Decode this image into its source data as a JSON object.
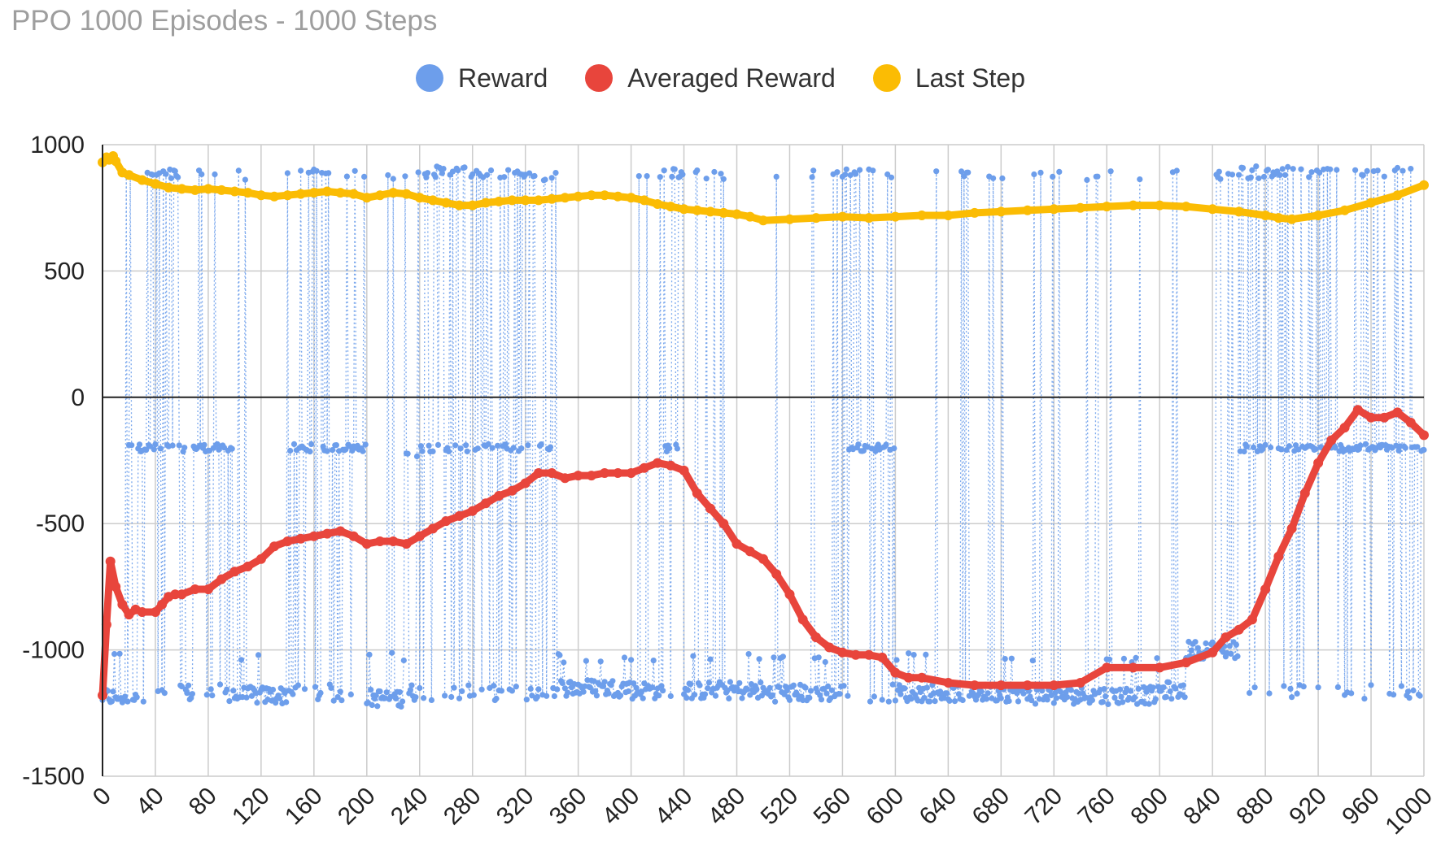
{
  "chart_data": {
    "type": "line",
    "title": "PPO 1000 Episodes - 1000 Steps",
    "xlabel": "",
    "ylabel": "",
    "xlim": [
      0,
      1000
    ],
    "ylim": [
      -1500,
      1000
    ],
    "y_ticks": [
      "1000",
      "500",
      "0",
      "-500",
      "-1000",
      "-1500"
    ],
    "y_tick_values": [
      1000,
      500,
      0,
      -500,
      -1000,
      -1500
    ],
    "x_ticks": [
      "0",
      "40",
      "80",
      "120",
      "160",
      "200",
      "240",
      "280",
      "320",
      "360",
      "400",
      "440",
      "480",
      "520",
      "560",
      "600",
      "640",
      "680",
      "720",
      "760",
      "800",
      "840",
      "880",
      "920",
      "960",
      "1000"
    ],
    "grid": true,
    "legend_position": "top-center",
    "series": [
      {
        "name": "Reward",
        "color": "#6d9eeb",
        "style": "dotted-line-with-markers",
        "regime_points": [
          [
            0,
            -1185
          ],
          [
            20,
            -200
          ],
          [
            35,
            880
          ],
          [
            60,
            -200
          ],
          [
            100,
            -1180
          ],
          [
            140,
            -200
          ],
          [
            200,
            -1190
          ],
          [
            230,
            -220
          ],
          [
            240,
            890
          ],
          [
            300,
            880
          ],
          [
            340,
            -1150
          ],
          [
            400,
            -1160
          ],
          [
            420,
            890
          ],
          [
            440,
            -1160
          ],
          [
            500,
            -1170
          ],
          [
            560,
            -200
          ],
          [
            600,
            -1170
          ],
          [
            700,
            -1180
          ],
          [
            800,
            -1160
          ],
          [
            820,
            -1000
          ],
          [
            860,
            890
          ],
          [
            900,
            -200
          ],
          [
            960,
            -200
          ],
          [
            1000,
            -200
          ]
        ]
      },
      {
        "name": "Averaged Reward",
        "color": "#e8453c",
        "style": "line-with-markers",
        "x": [
          0,
          3,
          6,
          10,
          15,
          20,
          25,
          30,
          40,
          45,
          50,
          55,
          60,
          70,
          80,
          90,
          100,
          110,
          120,
          130,
          140,
          150,
          160,
          170,
          180,
          190,
          200,
          210,
          220,
          230,
          240,
          250,
          260,
          270,
          280,
          290,
          300,
          310,
          320,
          330,
          340,
          350,
          360,
          370,
          380,
          390,
          400,
          410,
          420,
          430,
          440,
          450,
          460,
          470,
          480,
          490,
          500,
          510,
          520,
          530,
          540,
          550,
          560,
          570,
          580,
          590,
          600,
          610,
          620,
          640,
          660,
          680,
          700,
          720,
          740,
          760,
          780,
          800,
          820,
          840,
          850,
          860,
          870,
          880,
          890,
          900,
          910,
          920,
          930,
          940,
          950,
          960,
          970,
          980,
          990,
          1000
        ],
        "y": [
          -1180,
          -900,
          -650,
          -750,
          -820,
          -860,
          -840,
          -850,
          -850,
          -820,
          -790,
          -780,
          -780,
          -760,
          -760,
          -720,
          -690,
          -670,
          -640,
          -590,
          -570,
          -560,
          -550,
          -540,
          -530,
          -550,
          -580,
          -570,
          -570,
          -580,
          -550,
          -520,
          -490,
          -470,
          -450,
          -420,
          -390,
          -370,
          -340,
          -300,
          -300,
          -320,
          -310,
          -310,
          -300,
          -300,
          -300,
          -280,
          -260,
          -270,
          -290,
          -380,
          -440,
          -500,
          -580,
          -610,
          -640,
          -700,
          -780,
          -880,
          -950,
          -990,
          -1010,
          -1020,
          -1020,
          -1030,
          -1090,
          -1110,
          -1110,
          -1130,
          -1140,
          -1140,
          -1140,
          -1140,
          -1130,
          -1070,
          -1070,
          -1070,
          -1050,
          -1010,
          -950,
          -920,
          -880,
          -760,
          -630,
          -520,
          -380,
          -260,
          -170,
          -120,
          -50,
          -80,
          -80,
          -60,
          -100,
          -150
        ]
      },
      {
        "name": "Last Step",
        "color": "#fbbc04",
        "style": "line-with-markers",
        "x": [
          0,
          3,
          5,
          8,
          10,
          15,
          20,
          30,
          40,
          50,
          60,
          70,
          80,
          90,
          100,
          110,
          120,
          130,
          140,
          150,
          160,
          170,
          180,
          190,
          200,
          210,
          220,
          230,
          240,
          250,
          260,
          270,
          280,
          290,
          300,
          310,
          320,
          330,
          340,
          350,
          360,
          370,
          380,
          390,
          400,
          410,
          420,
          430,
          440,
          450,
          460,
          470,
          480,
          490,
          500,
          520,
          540,
          560,
          580,
          600,
          620,
          640,
          660,
          680,
          700,
          720,
          740,
          760,
          780,
          800,
          820,
          840,
          860,
          880,
          890,
          900,
          920,
          940,
          960,
          980,
          1000
        ],
        "y": [
          930,
          950,
          940,
          955,
          935,
          890,
          880,
          860,
          845,
          830,
          825,
          820,
          825,
          820,
          815,
          810,
          800,
          795,
          800,
          805,
          810,
          815,
          810,
          805,
          790,
          800,
          810,
          805,
          790,
          780,
          770,
          760,
          760,
          770,
          775,
          780,
          780,
          780,
          785,
          790,
          795,
          800,
          800,
          795,
          790,
          780,
          765,
          755,
          745,
          740,
          735,
          730,
          725,
          715,
          700,
          705,
          710,
          715,
          710,
          715,
          720,
          720,
          730,
          735,
          740,
          745,
          750,
          755,
          760,
          760,
          755,
          745,
          735,
          720,
          710,
          705,
          720,
          740,
          770,
          800,
          840
        ]
      }
    ]
  }
}
